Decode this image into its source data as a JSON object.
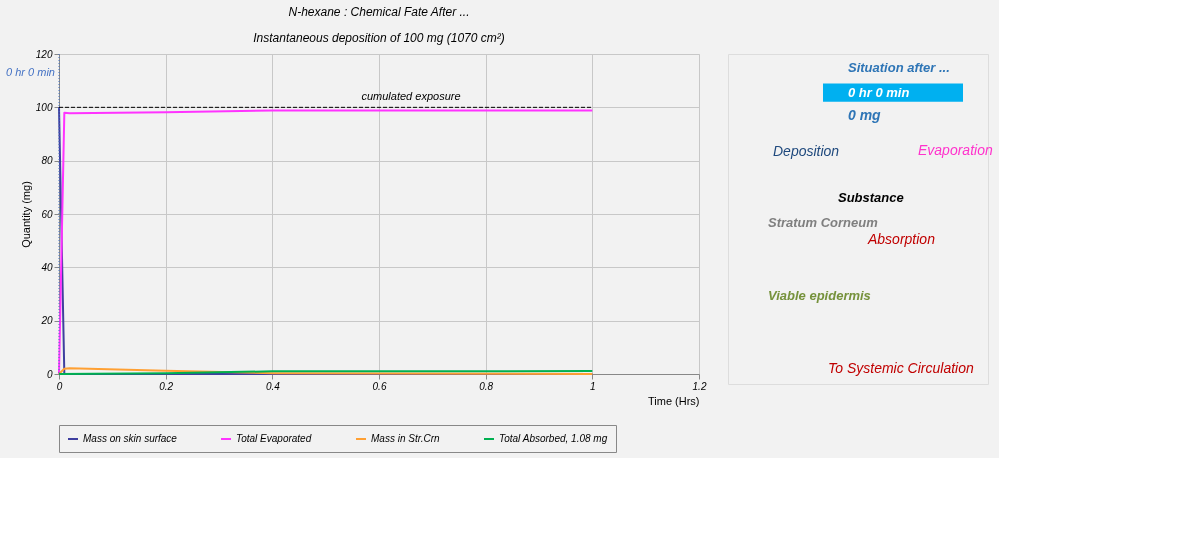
{
  "chart_data": {
    "type": "line",
    "title": "N-hexane : Chemical Fate After ...",
    "subtitle": "Instantaneous deposition of 100 mg (1070 cm²)",
    "xlabel": "Time (Hrs)",
    "ylabel": "Quantity (mg)",
    "series": [
      {
        "name": "Mass on skin surface",
        "color": "#3f3f9f",
        "x": [
          0,
          0.01,
          1
        ],
        "values": [
          100,
          0,
          0
        ]
      },
      {
        "name": "Total Evaporated",
        "color": "#ff33ff",
        "x": [
          0,
          0.01,
          0.02,
          0.2,
          0.4,
          1
        ],
        "values": [
          0,
          98,
          97.8,
          98.2,
          98.8,
          98.8
        ]
      },
      {
        "name": "Mass in Str.Crn",
        "color": "#ffa033",
        "x": [
          0,
          0.01,
          0.02,
          0.2,
          0.4,
          1
        ],
        "values": [
          0,
          2,
          2.2,
          1.2,
          0.3,
          0
        ]
      },
      {
        "name": "Total Absorbed, 1.08 mg",
        "color": "#00b050",
        "x": [
          0,
          0.2,
          0.4,
          1
        ],
        "values": [
          0,
          0.3,
          1.0,
          1.08
        ]
      }
    ],
    "xlim": [
      0,
      1.2
    ],
    "ylim": [
      0,
      120
    ],
    "xticks": [
      0,
      0.2,
      0.4,
      0.6,
      0.8,
      1,
      1.2
    ],
    "yticks": [
      0,
      20,
      40,
      60,
      80,
      100,
      120
    ],
    "ref_lines": [
      {
        "axis": "y",
        "value": 100,
        "label": "cumulated exposure",
        "line_style": "dashed",
        "color": "#000000"
      },
      {
        "axis": "x",
        "value": 0,
        "label": "0 hr 0 min",
        "line_style": "dotted",
        "color": "#4472c4"
      }
    ],
    "grid": true,
    "legend": "bottom",
    "line_style": "solid",
    "annotations": [
      "Situation after ...",
      "0 hr 0 min",
      "0 mg",
      "Deposition",
      "Evaporation",
      "Substance",
      "Stratum Corneum",
      "Absorption",
      "Viable epidermis",
      "To Systemic Circulation"
    ]
  }
}
